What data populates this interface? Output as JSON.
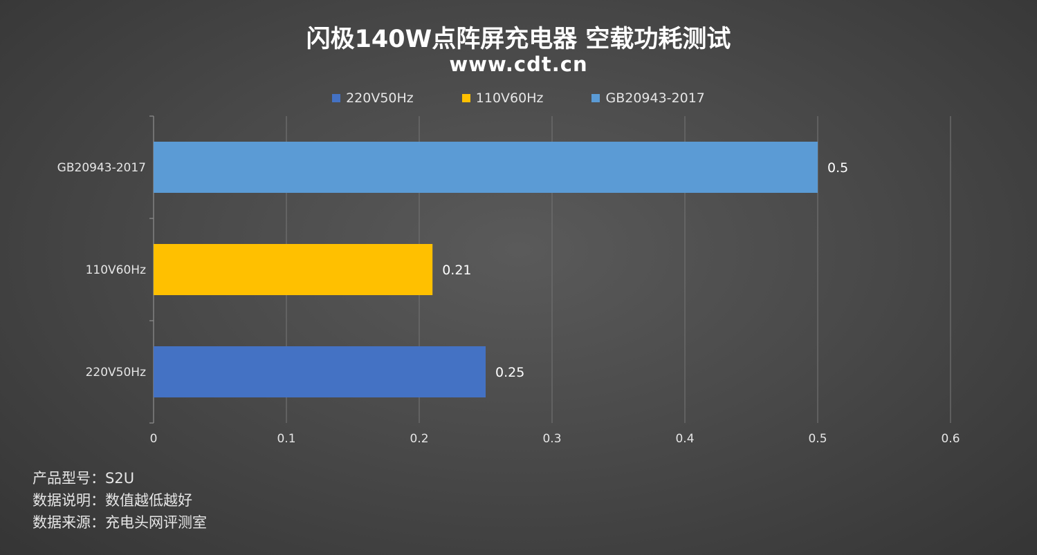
{
  "title": "闪极140W点阵屏充电器 空载功耗测试",
  "subtitle": "www.cdt.cn",
  "notes": [
    "产品型号：S2U",
    "数据说明：数值越低越好",
    "数据来源：充电头网评测室"
  ],
  "colors": {
    "220V50Hz": "#4472C4",
    "110V60Hz": "#FFC000",
    "GB20943-2017": "#5B9BD5"
  },
  "chart_data": {
    "type": "bar",
    "orientation": "horizontal",
    "title": "闪极140W点阵屏充电器 空载功耗测试",
    "categories": [
      "220V50Hz",
      "110V60Hz",
      "GB20943-2017"
    ],
    "series": [
      {
        "name": "220V50Hz",
        "category": "220V50Hz",
        "value": 0.25,
        "color": "#4472C4"
      },
      {
        "name": "110V60Hz",
        "category": "110V60Hz",
        "value": 0.21,
        "color": "#FFC000"
      },
      {
        "name": "GB20943-2017",
        "category": "GB20943-2017",
        "value": 0.5,
        "color": "#5B9BD5"
      }
    ],
    "xlim": [
      0,
      0.6
    ],
    "xticks": [
      "0",
      "0.1",
      "0.2",
      "0.3",
      "0.4",
      "0.5",
      "0.6"
    ],
    "data_labels": [
      "0.25",
      "0.21",
      "0.5"
    ],
    "legend": [
      "220V50Hz",
      "110V60Hz",
      "GB20943-2017"
    ],
    "legend_position": "top",
    "grid": true
  }
}
